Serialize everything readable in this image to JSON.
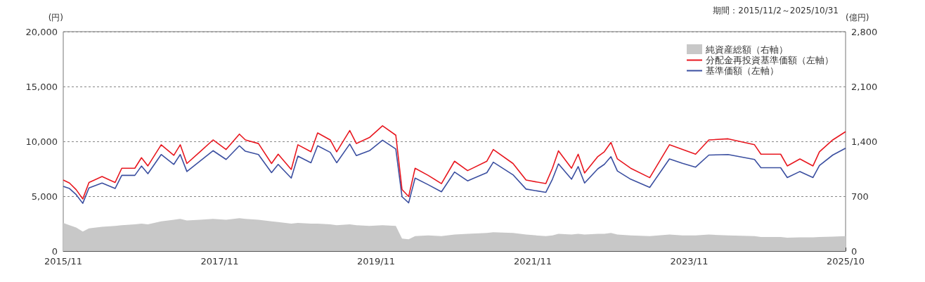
{
  "chart_data": {
    "type": "line",
    "subtitle": "期間：2015/11/2～2025/10/31",
    "ylabel": "(円)",
    "y2label": "(億円)",
    "x": [
      "2015-11-02",
      "2015-12",
      "2016-01",
      "2016-02",
      "2016-03",
      "2016-05",
      "2016-07",
      "2016-08",
      "2016-10",
      "2016-11",
      "2016-12",
      "2017-02",
      "2017-04",
      "2017-05",
      "2017-06",
      "2017-08",
      "2017-10",
      "2017-12",
      "2018-02",
      "2018-03",
      "2018-05",
      "2018-07",
      "2018-08",
      "2018-10",
      "2018-11",
      "2019-01",
      "2019-02",
      "2019-04",
      "2019-05",
      "2019-07",
      "2019-08",
      "2019-10",
      "2019-12",
      "2020-02",
      "2020-03",
      "2020-04",
      "2020-05",
      "2020-07",
      "2020-09",
      "2020-11",
      "2021-01",
      "2021-04",
      "2021-05",
      "2021-08",
      "2021-10",
      "2022-01",
      "2022-02",
      "2022-03",
      "2022-05",
      "2022-06",
      "2022-07",
      "2022-09",
      "2022-10",
      "2022-11",
      "2022-12",
      "2023-02",
      "2023-05",
      "2023-08",
      "2023-10",
      "2023-12",
      "2024-02",
      "2024-05",
      "2024-09",
      "2024-10",
      "2025-01",
      "2025-02",
      "2025-04",
      "2025-06",
      "2025-07",
      "2025-09",
      "2025-10-31"
    ],
    "series": [
      {
        "name": "純資産総額（右軸）",
        "type": "area",
        "axis": "y2",
        "color": "#c8c8c8",
        "values": [
          360,
          330,
          300,
          250,
          290,
          310,
          320,
          330,
          340,
          350,
          340,
          380,
          400,
          410,
          390,
          400,
          410,
          400,
          420,
          410,
          400,
          380,
          370,
          350,
          360,
          350,
          350,
          340,
          330,
          340,
          330,
          320,
          330,
          320,
          160,
          150,
          190,
          200,
          190,
          210,
          220,
          230,
          240,
          230,
          210,
          190,
          200,
          220,
          210,
          220,
          210,
          220,
          220,
          230,
          210,
          200,
          190,
          210,
          200,
          200,
          210,
          200,
          190,
          180,
          180,
          170,
          175,
          175,
          180,
          185,
          190
        ]
      },
      {
        "name": "分配金再投資基準価額（左軸）",
        "color": "#e8171f",
        "values": [
          6470,
          6200,
          5600,
          4750,
          6250,
          6790,
          6250,
          7550,
          7550,
          8510,
          7760,
          9690,
          8730,
          9690,
          7980,
          9050,
          10130,
          9260,
          10660,
          10130,
          9800,
          7980,
          8830,
          7440,
          9690,
          9050,
          10770,
          10130,
          9050,
          10990,
          9800,
          10350,
          11420,
          10560,
          5610,
          4970,
          7550,
          6900,
          6150,
          8190,
          7330,
          8190,
          9260,
          7980,
          6470,
          6150,
          7550,
          9140,
          7550,
          8830,
          7120,
          8620,
          9050,
          9900,
          8400,
          7550,
          6690,
          9690,
          9260,
          8830,
          10130,
          10230,
          9690,
          8830,
          8830,
          7760,
          8400,
          7760,
          9050,
          10130,
          10880
        ]
      },
      {
        "name": "基準価額（左軸）",
        "color": "#3b4fa0",
        "values": [
          5900,
          5700,
          5150,
          4350,
          5750,
          6200,
          5700,
          6900,
          6900,
          7750,
          7050,
          8800,
          7900,
          8800,
          7250,
          8200,
          9150,
          8350,
          9600,
          9100,
          8800,
          7150,
          7900,
          6650,
          8650,
          8050,
          9600,
          9000,
          8050,
          9750,
          8700,
          9150,
          10100,
          9300,
          4950,
          4400,
          6650,
          6050,
          5400,
          7200,
          6400,
          7150,
          8100,
          6950,
          5650,
          5350,
          6550,
          7950,
          6550,
          7700,
          6200,
          7500,
          7900,
          8600,
          7300,
          6550,
          5800,
          8400,
          8000,
          7650,
          8750,
          8800,
          8350,
          7600,
          7600,
          6700,
          7250,
          6700,
          7800,
          8750,
          9380
        ]
      }
    ],
    "xlim": [
      "2015-11-02",
      "2025-10-31"
    ],
    "xticks": [
      {
        "value": "2015-11-02",
        "label": "2015/11"
      },
      {
        "value": "2017-11-01",
        "label": "2017/11"
      },
      {
        "value": "2019-11-01",
        "label": "2019/11"
      },
      {
        "value": "2021-11-01",
        "label": "2021/11"
      },
      {
        "value": "2023-11-01",
        "label": "2023/11"
      },
      {
        "value": "2025-10-31",
        "label": "2025/10"
      }
    ],
    "ylim": [
      0,
      20000
    ],
    "yticks": [
      0,
      {
        "value": 5000,
        "label": "5,000"
      },
      {
        "value": 10000,
        "label": "10,000"
      },
      {
        "value": 15000,
        "label": "15,000"
      },
      {
        "value": 20000,
        "label": "20,000"
      }
    ],
    "y2lim": [
      0,
      2800
    ],
    "y2ticks": [
      0,
      700,
      {
        "value": 1400,
        "label": "1,400"
      },
      {
        "value": 2100,
        "label": "2,100"
      },
      {
        "value": 2800,
        "label": "2,800"
      }
    ],
    "grid": "y",
    "legend": "top right",
    "line_style": "solid",
    "marker": "none"
  }
}
